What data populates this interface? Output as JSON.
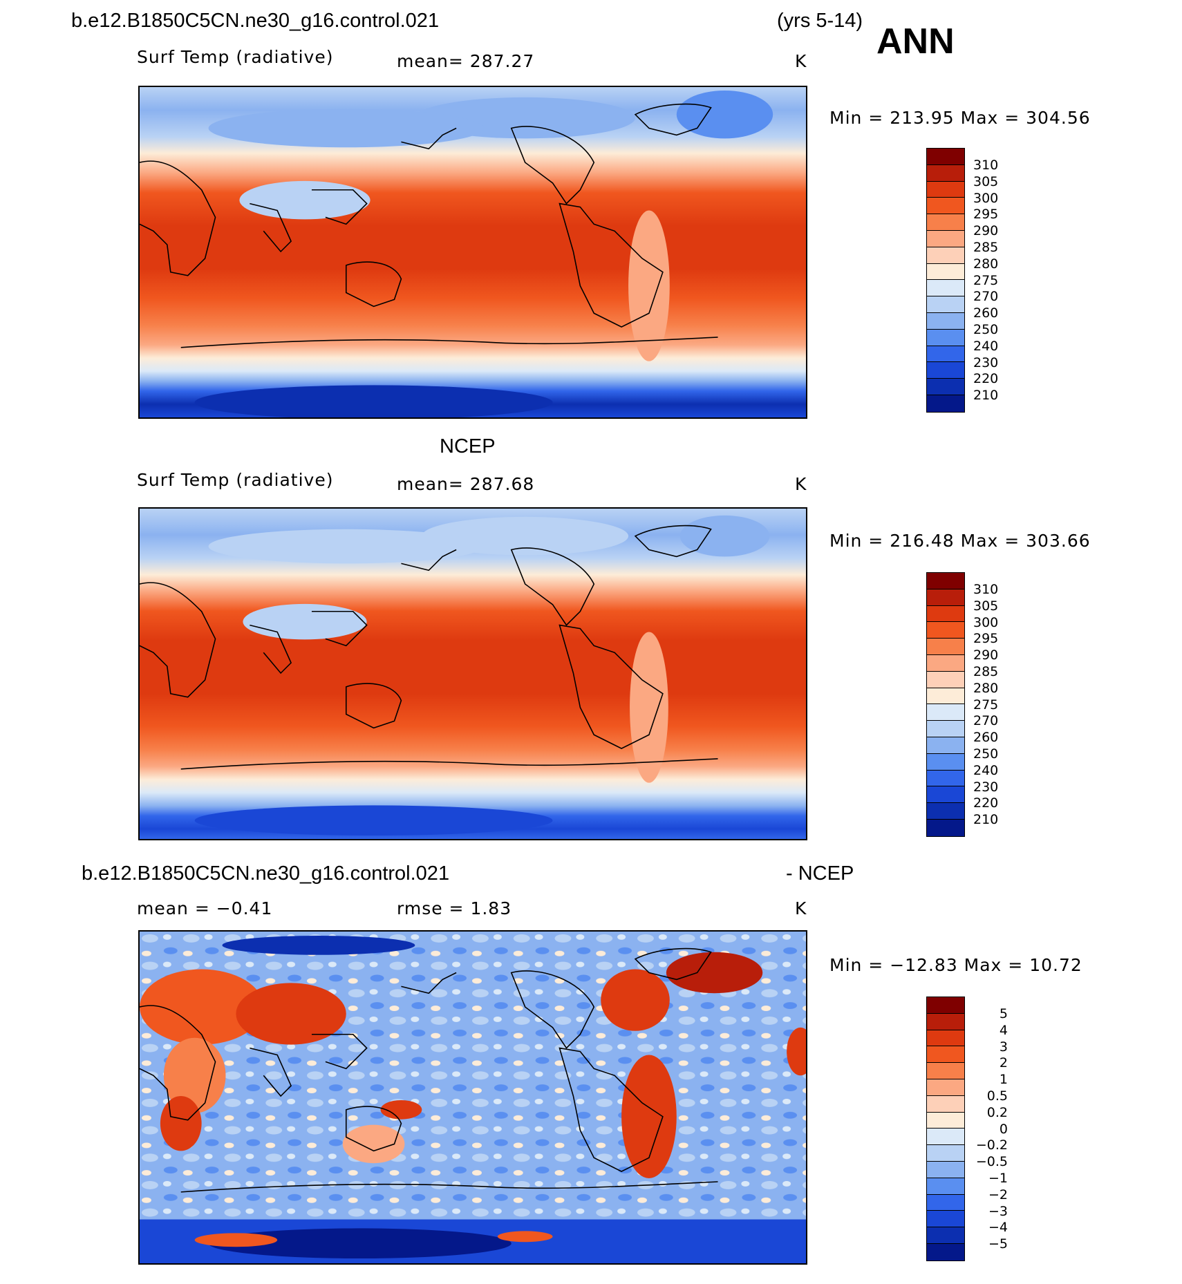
{
  "header": {
    "case_name": "b.e12.B1850C5CN.ne30_g16.control.021",
    "years": "(yrs 5-14)",
    "season": "ANN"
  },
  "panels": [
    {
      "left_label": "Surf Temp (radiative)",
      "center_label": "mean=  287.27",
      "units": "K",
      "stats": "Min  =  213.95  Max  =  304.56",
      "colorbar": [
        "310",
        "305",
        "300",
        "295",
        "290",
        "285",
        "280",
        "275",
        "270",
        "260",
        "250",
        "240",
        "230",
        "220",
        "210"
      ]
    },
    {
      "title": "NCEP",
      "left_label": "Surf Temp (radiative)",
      "center_label": "mean=  287.68",
      "units": "K",
      "stats": "Min  =  216.48  Max  =  303.66",
      "colorbar": [
        "310",
        "305",
        "300",
        "295",
        "290",
        "285",
        "280",
        "275",
        "270",
        "260",
        "250",
        "240",
        "230",
        "220",
        "210"
      ]
    },
    {
      "title_left": "b.e12.B1850C5CN.ne30_g16.control.021",
      "title_right": "- NCEP",
      "left_label": "mean  =    −0.41",
      "center_label": "rmse  =     1.83",
      "units": "K",
      "stats": "Min  =  −12.83  Max  =    10.72",
      "colorbar": [
        "5",
        "4",
        "3",
        "2",
        "1",
        "0.5",
        "0.2",
        "0",
        "−0.2",
        "−0.5",
        "−1",
        "−2",
        "−3",
        "−4",
        "−5"
      ]
    }
  ],
  "palette": [
    "#7f0000",
    "#b81e0a",
    "#de3a10",
    "#f0571f",
    "#f7804a",
    "#fba882",
    "#fdd0b8",
    "#fdecd8",
    "#dbe9f8",
    "#b9d2f4",
    "#8bb2f0",
    "#5a8ff0",
    "#3266ea",
    "#1a47d6",
    "#0c2fb0",
    "#04188a"
  ]
}
